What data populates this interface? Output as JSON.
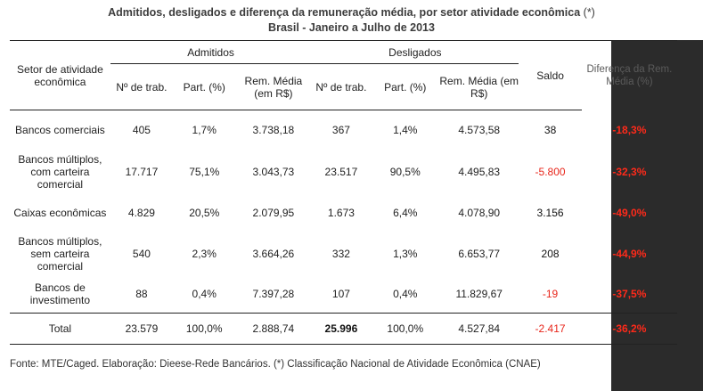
{
  "title": {
    "line1": "Admitidos, desligados e diferença da remuneração média, por setor atividade econômica",
    "marker": "(*)",
    "line2": "Brasil - Janeiro a Julho de 2013"
  },
  "headers": {
    "sector": "Setor de atividade econômica",
    "admitidos": "Admitidos",
    "desligados": "Desligados",
    "saldo": "Saldo",
    "diferenca": "Diferença da Rem. Média (%)",
    "n_trab": "Nº de trab.",
    "part": "Part. (%)",
    "rem": "Rem. Média (em R$)"
  },
  "rows": [
    {
      "sector": "Bancos comerciais",
      "adm_n": "405",
      "adm_part": "1,7%",
      "adm_rem": "3.738,18",
      "des_n": "367",
      "des_part": "1,4%",
      "des_rem": "4.573,58",
      "saldo": "38",
      "diff": "-18,3%"
    },
    {
      "sector": "Bancos múltiplos, com carteira comercial",
      "adm_n": "17.717",
      "adm_part": "75,1%",
      "adm_rem": "3.043,73",
      "des_n": "23.517",
      "des_part": "90,5%",
      "des_rem": "4.495,83",
      "saldo": "-5.800",
      "diff": "-32,3%"
    },
    {
      "sector": "Caixas econômicas",
      "adm_n": "4.829",
      "adm_part": "20,5%",
      "adm_rem": "2.079,95",
      "des_n": "1.673",
      "des_part": "6,4%",
      "des_rem": "4.078,90",
      "saldo": "3.156",
      "diff": "-49,0%"
    },
    {
      "sector": "Bancos múltiplos, sem carteira comercial",
      "adm_n": "540",
      "adm_part": "2,3%",
      "adm_rem": "3.664,26",
      "des_n": "332",
      "des_part": "1,3%",
      "des_rem": "6.653,77",
      "saldo": "208",
      "diff": "-44,9%"
    },
    {
      "sector": "Bancos de investimento",
      "adm_n": "88",
      "adm_part": "0,4%",
      "adm_rem": "7.397,28",
      "des_n": "107",
      "des_part": "0,4%",
      "des_rem": "11.829,67",
      "saldo": "-19",
      "diff": "-37,5%"
    }
  ],
  "total": {
    "sector": "Total",
    "adm_n": "23.579",
    "adm_part": "100,0%",
    "adm_rem": "2.888,74",
    "des_n": "25.996",
    "des_part": "100,0%",
    "des_rem": "4.527,84",
    "saldo": "-2.417",
    "diff": "-36,2%"
  },
  "source": "Fonte: MTE/Caged. Elaboração: Dieese-Rede Bancários. (*) Classificação Nacional de Atividade Econômica (CNAE)",
  "colors": {
    "negative": "#e8261b",
    "difference": "#ff2a1a",
    "dark_panel": "#2b2b2b"
  }
}
